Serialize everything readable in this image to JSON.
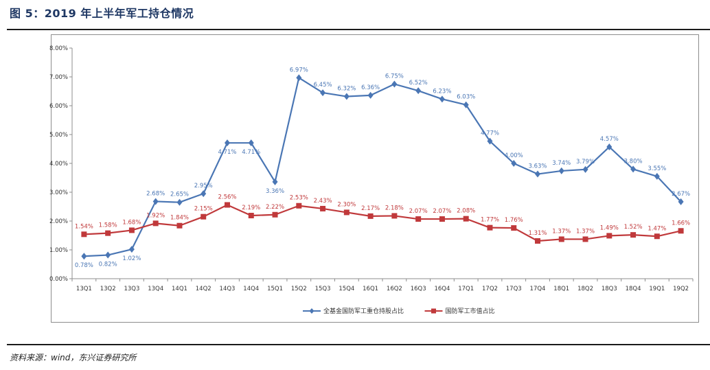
{
  "header": {
    "title": "图 5：2019 年上半年军工持仓情况"
  },
  "footer": {
    "source": "资料来源：wind，东兴证券研究所"
  },
  "colors": {
    "blue": "#4a76b4",
    "red": "#c0393b"
  },
  "chart_data": {
    "type": "line",
    "categories": [
      "13Q1",
      "13Q2",
      "13Q3",
      "13Q4",
      "14Q1",
      "14Q2",
      "14Q3",
      "14Q4",
      "15Q1",
      "15Q2",
      "15Q3",
      "15Q4",
      "16Q1",
      "16Q2",
      "16Q3",
      "16Q4",
      "17Q1",
      "17Q2",
      "17Q3",
      "17Q4",
      "18Q1",
      "18Q2",
      "18Q3",
      "18Q4",
      "19Q1",
      "19Q2"
    ],
    "series": [
      {
        "name": "全基金国防军工重仓持股占比",
        "color": "#4a76b4",
        "marker": "diamond",
        "values": [
          0.78,
          0.82,
          1.02,
          2.68,
          2.65,
          2.95,
          4.71,
          4.71,
          3.36,
          6.97,
          6.45,
          6.32,
          6.36,
          6.75,
          6.52,
          6.23,
          6.03,
          4.77,
          4.0,
          3.63,
          3.74,
          3.79,
          4.57,
          3.8,
          3.55,
          2.67
        ]
      },
      {
        "name": "国防军工市值占比",
        "color": "#c0393b",
        "marker": "square",
        "values": [
          1.54,
          1.58,
          1.68,
          1.92,
          1.84,
          2.15,
          2.56,
          2.19,
          2.22,
          2.53,
          2.43,
          2.3,
          2.17,
          2.18,
          2.07,
          2.07,
          2.08,
          1.77,
          1.76,
          1.31,
          1.37,
          1.37,
          1.49,
          1.52,
          1.47,
          1.66
        ]
      }
    ],
    "ylim": [
      0,
      8
    ],
    "yticks": [
      "0.00%",
      "1.00%",
      "2.00%",
      "3.00%",
      "4.00%",
      "5.00%",
      "6.00%",
      "7.00%",
      "8.00%"
    ],
    "data_labels": true,
    "grid": false,
    "legend": "bottom"
  }
}
